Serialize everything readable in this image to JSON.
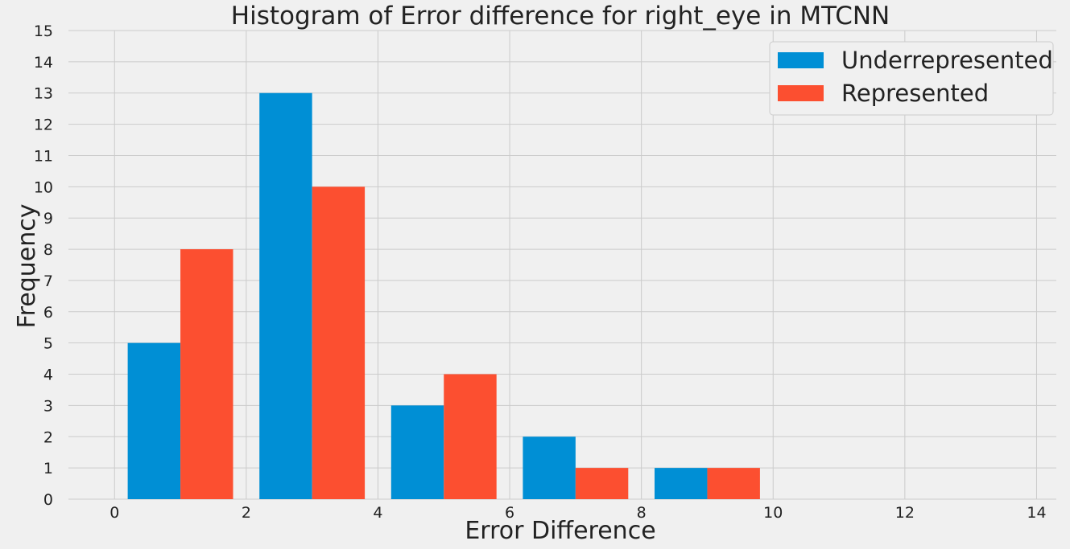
{
  "chart_data": {
    "type": "bar",
    "title": "Histogram of Error difference for right_eye in MTCNN",
    "xlabel": "Error Difference",
    "ylabel": "Frequency",
    "xlim": [
      -0.7,
      14.3
    ],
    "ylim": [
      0,
      15
    ],
    "xticks": [
      0,
      2,
      4,
      6,
      8,
      10,
      12,
      14
    ],
    "yticks": [
      0,
      1,
      2,
      3,
      4,
      5,
      6,
      7,
      8,
      9,
      10,
      11,
      12,
      13,
      14,
      15
    ],
    "bin_edges": [
      0.2,
      2.2,
      4.2,
      6.2,
      8.2,
      10.2
    ],
    "grid": true,
    "legend_position": "top-right",
    "series": [
      {
        "name": "Underrepresented",
        "color": "#008fd5",
        "values": [
          5,
          13,
          3,
          2,
          1
        ]
      },
      {
        "name": "Represented",
        "color": "#fc4f30",
        "values": [
          8,
          10,
          4,
          1,
          1
        ]
      }
    ]
  }
}
